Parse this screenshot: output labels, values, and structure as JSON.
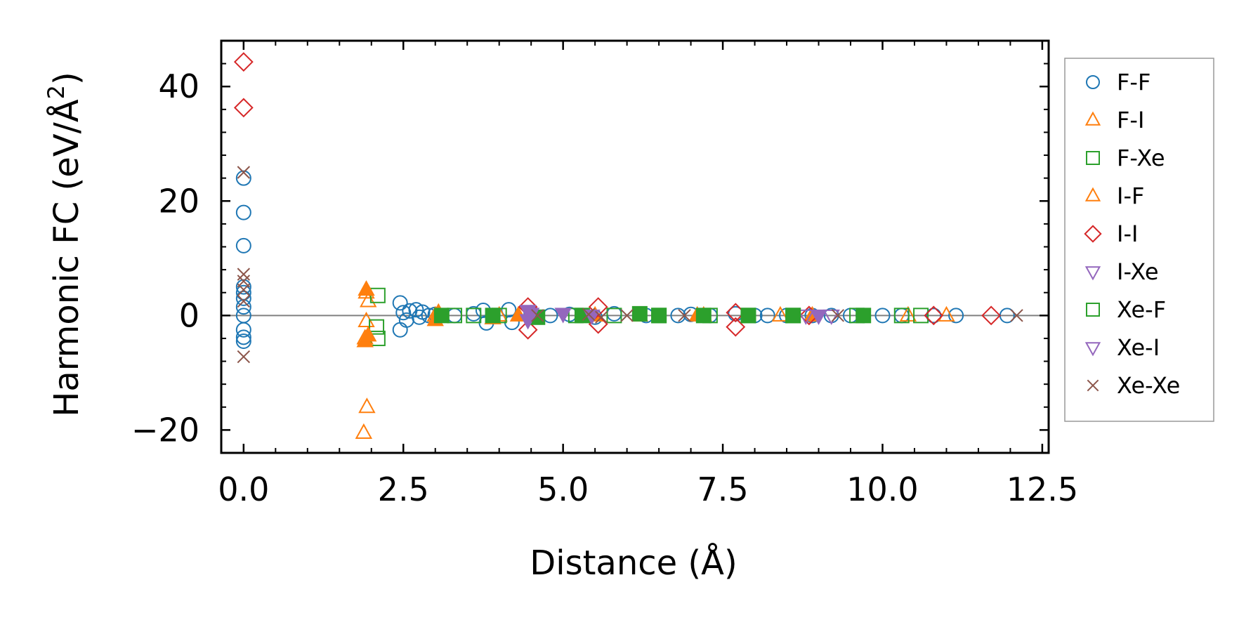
{
  "chart_data": {
    "type": "scatter",
    "title": "",
    "xlabel": "Distance (Å)",
    "ylabel_main": "Harmonic FC (eV/Å",
    "ylabel_sup": "2",
    "ylabel_end": ")",
    "xlim": [
      -0.35,
      12.6
    ],
    "ylim": [
      -24,
      48
    ],
    "xticks": [
      0.0,
      2.5,
      5.0,
      7.5,
      10.0,
      12.5
    ],
    "xtick_labels": [
      "0.0",
      "2.5",
      "5.0",
      "7.5",
      "10.0",
      "12.5"
    ],
    "yticks": [
      -20,
      0,
      20,
      40
    ],
    "ytick_labels": [
      "−20",
      "0",
      "20",
      "40"
    ],
    "zero_line": 0,
    "legend_position": "right",
    "series": [
      {
        "name": "F-F",
        "marker": "circle",
        "color": "#1f77b4",
        "filled": false,
        "points": [
          [
            0,
            24
          ],
          [
            0,
            18
          ],
          [
            0,
            12.2
          ],
          [
            0,
            5
          ],
          [
            0,
            4
          ],
          [
            0,
            3
          ],
          [
            0,
            1.5
          ],
          [
            0,
            0
          ],
          [
            0,
            -2.5
          ],
          [
            0,
            -3.8
          ],
          [
            0,
            -4.5
          ],
          [
            2.45,
            2.2
          ],
          [
            2.45,
            -2.5
          ],
          [
            2.5,
            0.5
          ],
          [
            2.55,
            -0.8
          ],
          [
            2.6,
            0.8
          ],
          [
            2.7,
            1
          ],
          [
            2.75,
            -0.3
          ],
          [
            2.8,
            0.6
          ],
          [
            2.9,
            0
          ],
          [
            3.0,
            0.2
          ],
          [
            3.3,
            0
          ],
          [
            3.6,
            0.3
          ],
          [
            3.75,
            0.9
          ],
          [
            3.8,
            -1.3
          ],
          [
            3.9,
            0
          ],
          [
            4.15,
            1
          ],
          [
            4.2,
            -1.2
          ],
          [
            4.5,
            0.5
          ],
          [
            4.8,
            0
          ],
          [
            5.1,
            0.2
          ],
          [
            5.5,
            -0.3
          ],
          [
            5.8,
            0.3
          ],
          [
            6.3,
            0
          ],
          [
            6.8,
            0
          ],
          [
            7.0,
            0.2
          ],
          [
            7.3,
            0
          ],
          [
            7.7,
            0.3
          ],
          [
            8.0,
            0
          ],
          [
            8.2,
            0
          ],
          [
            8.5,
            0
          ],
          [
            8.9,
            0
          ],
          [
            9.2,
            0
          ],
          [
            9.5,
            0
          ],
          [
            9.7,
            0
          ],
          [
            10.0,
            0
          ],
          [
            10.3,
            0
          ],
          [
            10.8,
            0
          ],
          [
            11.15,
            0
          ],
          [
            11.95,
            0
          ]
        ]
      },
      {
        "name": "F-I",
        "marker": "triangle-up",
        "color": "#ff7f0e",
        "filled": false,
        "points": [
          [
            1.88,
            -20.5
          ],
          [
            1.93,
            -16
          ],
          [
            1.9,
            -4
          ],
          [
            1.92,
            -1
          ],
          [
            1.95,
            2.5
          ],
          [
            1.92,
            4
          ],
          [
            3.0,
            0
          ],
          [
            4.0,
            0
          ],
          [
            7.2,
            0
          ],
          [
            8.4,
            0
          ],
          [
            10.4,
            0
          ],
          [
            11.0,
            0
          ]
        ]
      },
      {
        "name": "F-Xe",
        "marker": "square",
        "color": "#2ca02c",
        "filled": false,
        "points": [
          [
            2.1,
            3.5
          ],
          [
            2.08,
            -2
          ],
          [
            2.1,
            -4
          ],
          [
            3.3,
            0
          ],
          [
            3.6,
            0
          ],
          [
            4.0,
            0
          ],
          [
            5.2,
            0
          ],
          [
            5.8,
            0
          ],
          [
            6.5,
            0
          ],
          [
            7.3,
            0
          ],
          [
            7.9,
            0
          ],
          [
            8.6,
            0
          ],
          [
            9.6,
            0
          ],
          [
            10.3,
            0
          ],
          [
            10.6,
            0
          ]
        ]
      },
      {
        "name": "I-F",
        "marker": "triangle-up",
        "color": "#ff7f0e",
        "filled": true,
        "points": [
          [
            1.92,
            4.5
          ],
          [
            1.9,
            -4.5
          ],
          [
            1.95,
            -3.5
          ],
          [
            3.0,
            -0.8
          ],
          [
            3.05,
            0.5
          ],
          [
            3.9,
            -0.5
          ],
          [
            4.3,
            0
          ],
          [
            5.5,
            0
          ],
          [
            6.2,
            0
          ],
          [
            7.1,
            0
          ],
          [
            8.9,
            0
          ]
        ]
      },
      {
        "name": "I-I",
        "marker": "diamond",
        "color": "#d62728",
        "filled": false,
        "points": [
          [
            0,
            44.3
          ],
          [
            0,
            36.3
          ],
          [
            4.45,
            1.5
          ],
          [
            4.45,
            -2.5
          ],
          [
            5.55,
            1.5
          ],
          [
            5.55,
            -1.5
          ],
          [
            7.7,
            0.5
          ],
          [
            7.7,
            -2
          ],
          [
            8.85,
            0
          ],
          [
            10.8,
            0
          ],
          [
            11.7,
            0
          ]
        ]
      },
      {
        "name": "I-Xe",
        "marker": "triangle-down",
        "color": "#9467bd",
        "filled": false,
        "points": [
          [
            8.8,
            0
          ],
          [
            9.2,
            0
          ]
        ]
      },
      {
        "name": "Xe-F",
        "marker": "square",
        "color": "#2ca02c",
        "filled": true,
        "points": [
          [
            3.1,
            0
          ],
          [
            3.9,
            0
          ],
          [
            4.6,
            -0.3
          ],
          [
            5.3,
            0
          ],
          [
            6.2,
            0.3
          ],
          [
            6.5,
            0
          ],
          [
            7.2,
            0
          ],
          [
            7.9,
            0
          ],
          [
            8.6,
            0
          ],
          [
            9.7,
            0
          ]
        ]
      },
      {
        "name": "Xe-I",
        "marker": "triangle-down",
        "color": "#9467bd",
        "filled": true,
        "points": [
          [
            4.45,
            0.8
          ],
          [
            4.45,
            -0.8
          ],
          [
            4.5,
            0.3
          ],
          [
            5.0,
            0.3
          ],
          [
            5.45,
            0
          ],
          [
            9.0,
            0
          ]
        ]
      },
      {
        "name": "Xe-Xe",
        "marker": "x",
        "color": "#8c564b",
        "filled": false,
        "points": [
          [
            0,
            25
          ],
          [
            0,
            7.2
          ],
          [
            0,
            6
          ],
          [
            0,
            4.5
          ],
          [
            0,
            2.5
          ],
          [
            0,
            -7.2
          ],
          [
            4.6,
            0
          ],
          [
            5.4,
            0.2
          ],
          [
            5.6,
            -0.3
          ],
          [
            6.0,
            0
          ],
          [
            6.9,
            0
          ],
          [
            9.3,
            0
          ],
          [
            12.1,
            0
          ]
        ]
      }
    ]
  }
}
